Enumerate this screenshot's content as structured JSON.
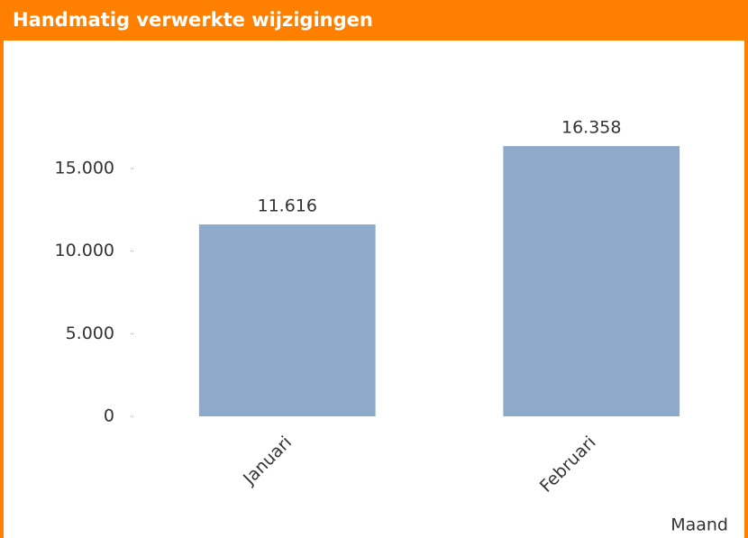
{
  "chart_data": {
    "type": "bar",
    "title": "Handmatig verwerkte wijzigingen",
    "categories": [
      "Januari",
      "Februari"
    ],
    "values": [
      11616,
      16358
    ],
    "value_labels": [
      "11.616",
      "16.358"
    ],
    "color": "#8eaacb",
    "x_label": "Maand",
    "ylim": [
      0,
      18000
    ],
    "yticks": [
      {
        "value": 0,
        "label": "0"
      },
      {
        "value": 5000,
        "label": "5.000"
      },
      {
        "value": 10000,
        "label": "10.000"
      },
      {
        "value": 15000,
        "label": "15.000"
      }
    ],
    "grid": false
  }
}
